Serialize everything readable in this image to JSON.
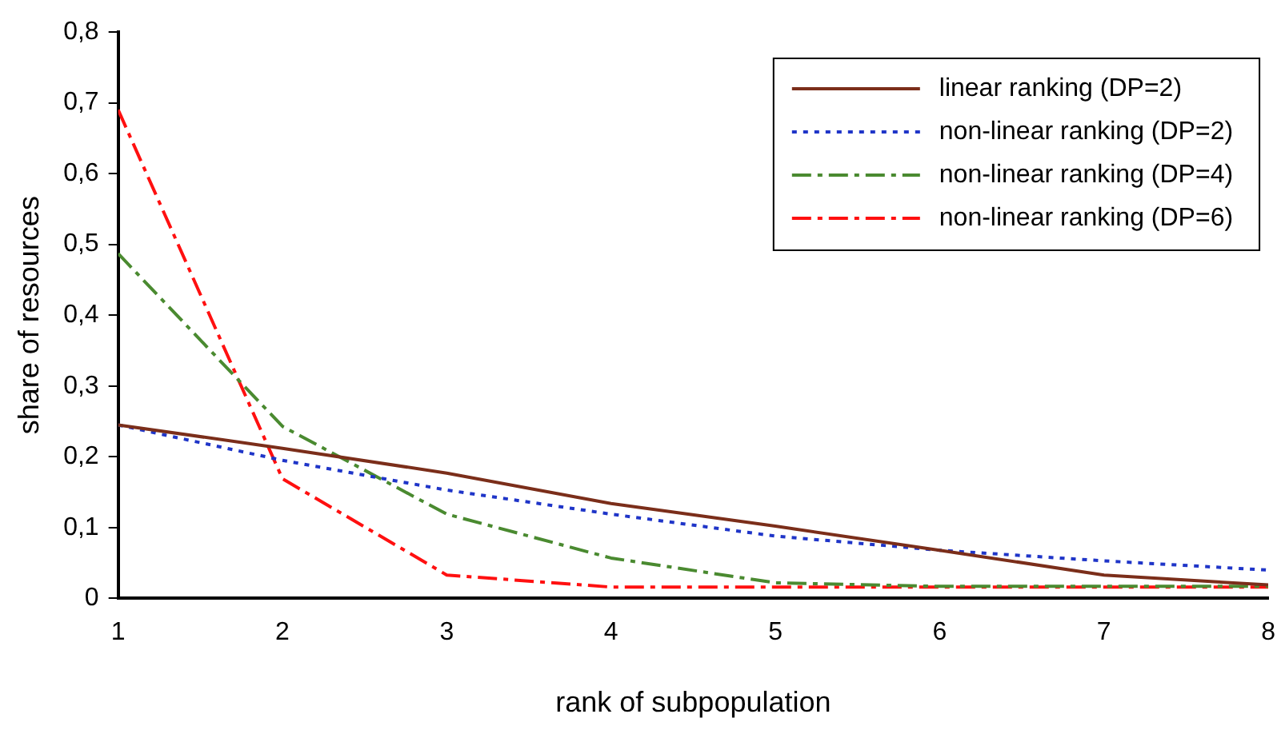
{
  "chart_data": {
    "type": "line",
    "xlabel": "rank of subpopulation",
    "ylabel": "share of resources",
    "x": [
      1,
      2,
      3,
      4,
      5,
      6,
      7,
      8
    ],
    "xlim": [
      1,
      8
    ],
    "xticks": [
      1,
      2,
      3,
      4,
      5,
      6,
      7,
      8
    ],
    "ylim": [
      0,
      0.8
    ],
    "yticks": [
      0,
      {
        "value": 0.1,
        "label": "0,1"
      },
      {
        "value": 0.2,
        "label": "0,2"
      },
      {
        "value": 0.3,
        "label": "0,3"
      },
      {
        "value": 0.4,
        "label": "0,4"
      },
      {
        "value": 0.5,
        "label": "0,5"
      },
      {
        "value": 0.6,
        "label": "0,6"
      },
      {
        "value": 0.7,
        "label": "0,7"
      },
      {
        "value": 0.8,
        "label": "0,8"
      }
    ],
    "grid": false,
    "legend": "top right",
    "marker": "none",
    "series": [
      {
        "name": "linear ranking (DP=2)",
        "color": "#7b2e1a",
        "line_style": "solid",
        "values": [
          0.245,
          0.212,
          0.177,
          0.134,
          0.102,
          0.068,
          0.033,
          0.019
        ]
      },
      {
        "name": "non-linear ranking (DP=2)",
        "color": "#1f35c8",
        "line_style": "dotted",
        "values": [
          0.245,
          0.195,
          0.153,
          0.119,
          0.088,
          0.068,
          0.053,
          0.04
        ]
      },
      {
        "name": "non-linear ranking (DP=4)",
        "color": "#4a8a30",
        "line_style": "dashed",
        "values": [
          0.487,
          0.243,
          0.119,
          0.057,
          0.022,
          0.017,
          0.017,
          0.017
        ]
      },
      {
        "name": "non-linear ranking (DP=6)",
        "color": "#ff1010",
        "line_style": "dashed",
        "values": [
          0.69,
          0.169,
          0.033,
          0.016,
          0.016,
          0.016,
          0.016,
          0.016
        ]
      }
    ]
  }
}
